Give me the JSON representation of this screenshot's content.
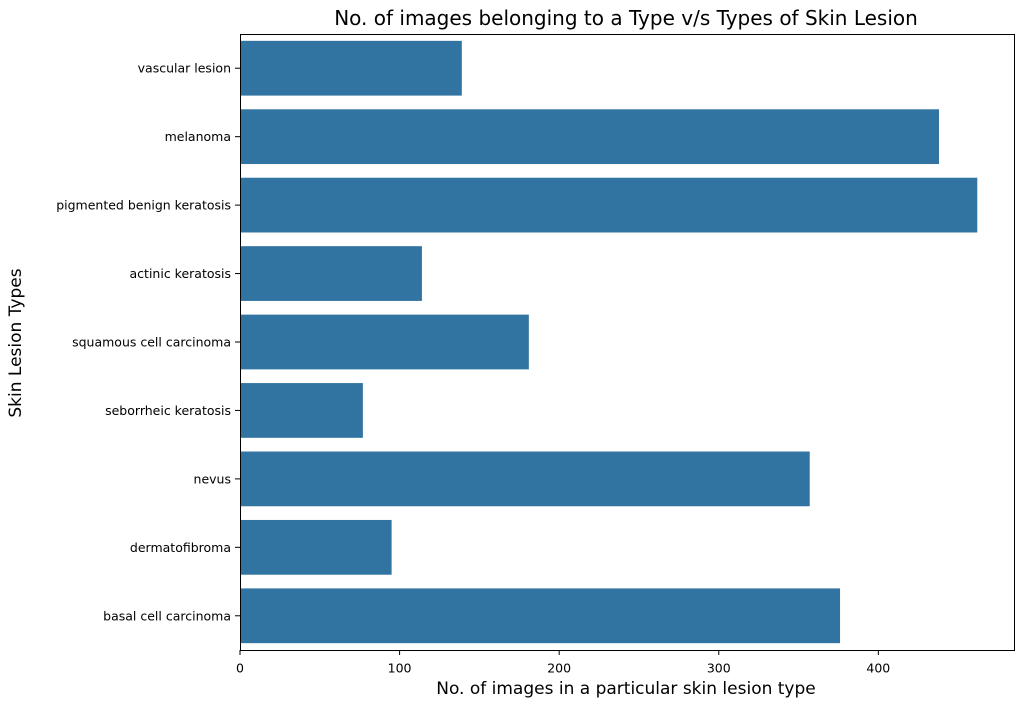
{
  "chart_data": {
    "type": "bar",
    "orientation": "horizontal",
    "title": "No. of images belonging to a Type v/s Types of Skin Lesion",
    "xlabel": "No. of images in a particular skin lesion type",
    "ylabel": "Skin Lesion Types",
    "categories": [
      "vascular lesion",
      "melanoma",
      "pigmented benign keratosis",
      "actinic keratosis",
      "squamous cell carcinoma",
      "seborrheic keratosis",
      "nevus",
      "dermatofibroma",
      "basal cell carcinoma"
    ],
    "values": [
      139,
      438,
      462,
      114,
      181,
      77,
      357,
      95,
      376
    ],
    "xlim": [
      0,
      485
    ],
    "xticks": [
      0,
      100,
      200,
      300,
      400
    ],
    "bar_color": "#3274a1",
    "grid": false
  }
}
